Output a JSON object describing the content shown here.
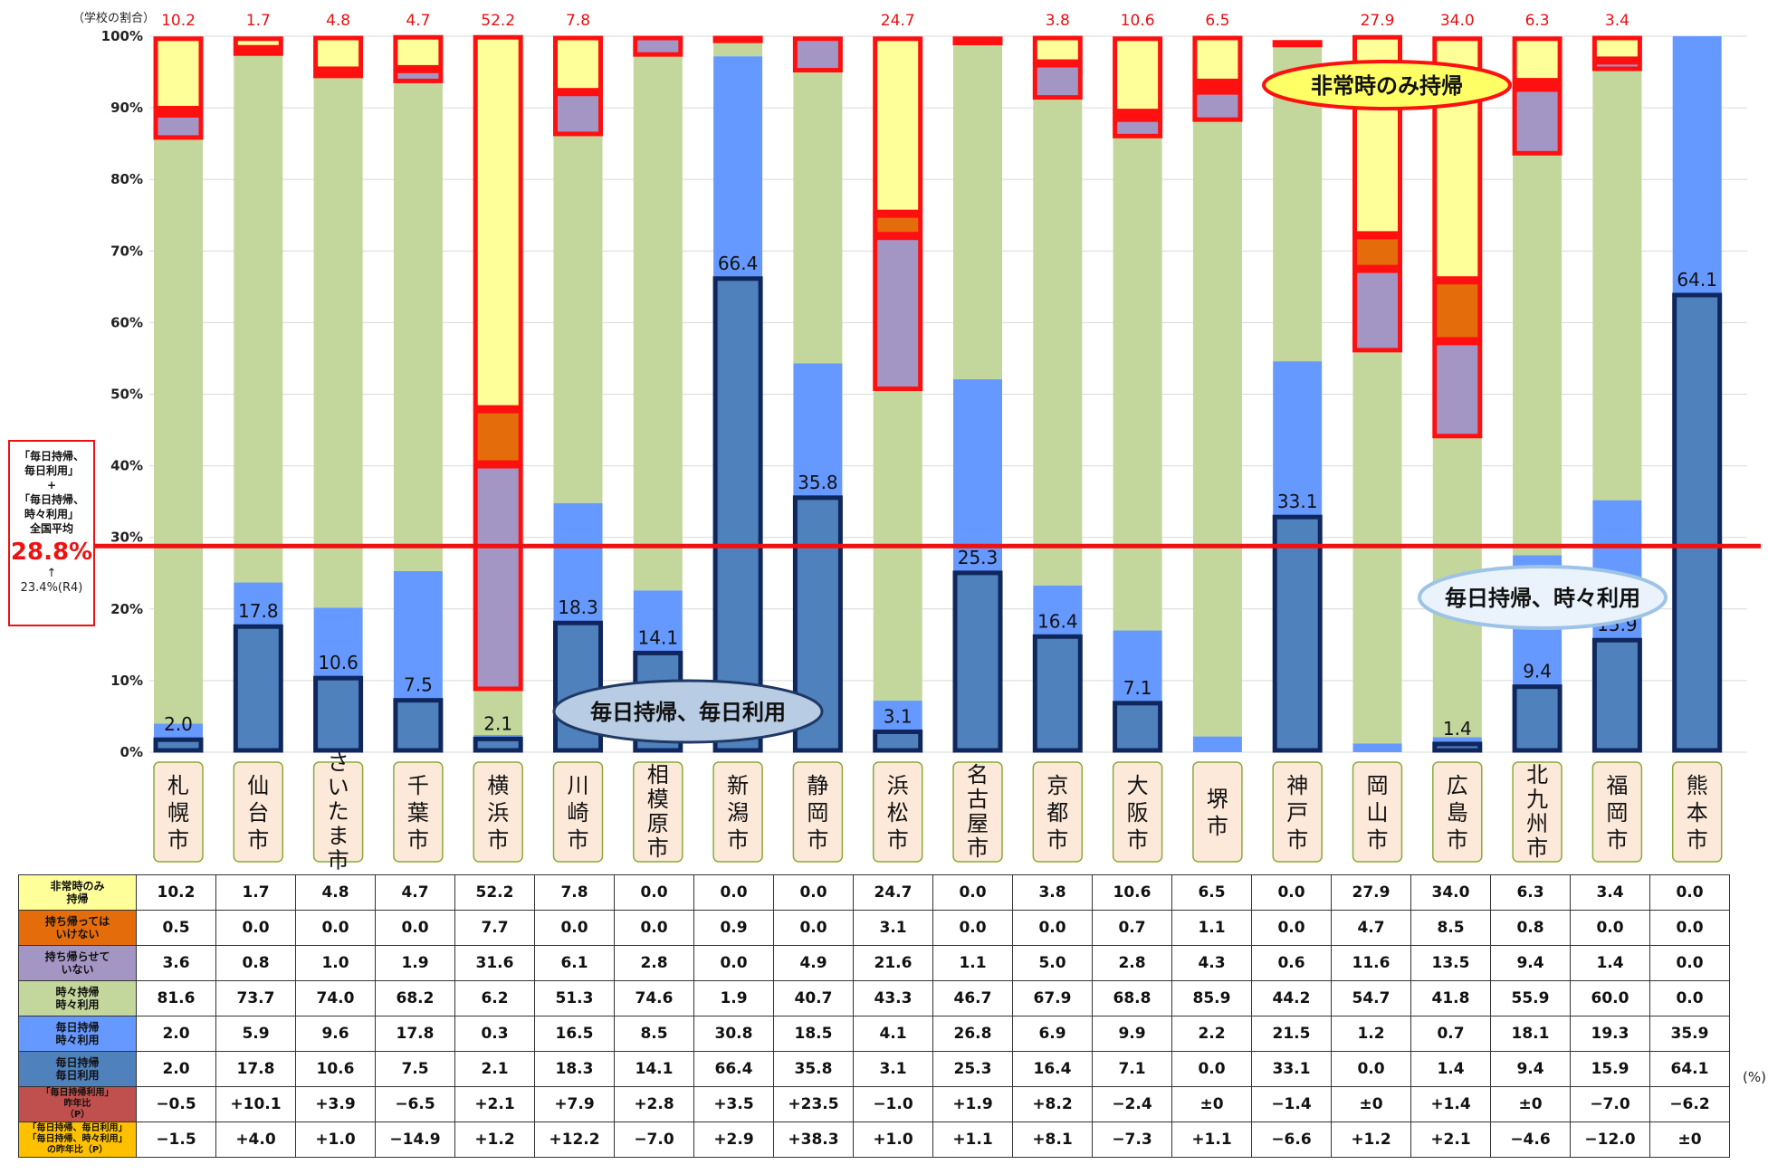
{
  "chart_data": {
    "type": "bar",
    "stacked": true,
    "y_unit_label": "（学校の割合）",
    "ylim": [
      0,
      100
    ],
    "yticks": [
      "0%",
      "10%",
      "20%",
      "30%",
      "40%",
      "50%",
      "60%",
      "70%",
      "80%",
      "90%",
      "100%"
    ],
    "unit_note": "(%)",
    "categories": [
      "札幌市",
      "仙台市",
      "さいたま市",
      "千葉市",
      "横浜市",
      "川崎市",
      "相模原市",
      "新潟市",
      "静岡市",
      "浜松市",
      "名古屋市",
      "京都市",
      "大阪市",
      "堺市",
      "神戸市",
      "岡山市",
      "広島市",
      "北九州市",
      "福岡市",
      "熊本市"
    ],
    "series": [
      {
        "name": "毎日持帰 毎日利用",
        "color": "#4f81bd",
        "values": [
          2.0,
          17.8,
          10.6,
          7.5,
          2.1,
          18.3,
          14.1,
          66.4,
          35.8,
          3.1,
          25.3,
          16.4,
          7.1,
          0.0,
          33.1,
          0.0,
          1.4,
          9.4,
          15.9,
          64.1
        ]
      },
      {
        "name": "毎日持帰 時々利用",
        "color": "#6699ff",
        "values": [
          2.0,
          5.9,
          9.6,
          17.8,
          0.3,
          16.5,
          8.5,
          30.8,
          18.5,
          4.1,
          26.8,
          6.9,
          9.9,
          2.2,
          21.5,
          1.2,
          0.7,
          18.1,
          19.3,
          35.9
        ]
      },
      {
        "name": "時々持帰 時々利用",
        "color": "#c3d69b",
        "values": [
          81.6,
          73.7,
          74.0,
          68.2,
          6.2,
          51.3,
          74.6,
          1.9,
          40.7,
          43.3,
          46.7,
          67.9,
          68.8,
          85.9,
          44.2,
          54.7,
          41.8,
          55.9,
          60.0,
          0.0
        ]
      },
      {
        "name": "持ち帰らせて いない",
        "color": "#a396c4",
        "values": [
          3.6,
          0.8,
          1.0,
          1.9,
          31.6,
          6.1,
          2.8,
          0.0,
          4.9,
          21.6,
          1.1,
          5.0,
          2.8,
          4.3,
          0.6,
          11.6,
          13.5,
          9.4,
          1.4,
          0.0
        ]
      },
      {
        "name": "持ち帰っては いけない",
        "color": "#e46c0a",
        "values": [
          0.5,
          0.0,
          0.0,
          0.0,
          7.7,
          0.0,
          0.0,
          0.9,
          0.0,
          3.1,
          0.0,
          0.0,
          0.7,
          1.1,
          0.0,
          4.7,
          8.5,
          0.8,
          0.0,
          0.0
        ]
      },
      {
        "name": "非常時のみ 持帰",
        "color": "#ffff99",
        "values": [
          10.2,
          1.7,
          4.8,
          4.7,
          52.2,
          7.8,
          0.0,
          0.0,
          0.0,
          24.7,
          0.0,
          3.8,
          10.6,
          6.5,
          0.0,
          27.9,
          34.0,
          6.3,
          3.4,
          0.0
        ]
      }
    ],
    "top_labels": [
      "10.2",
      "1.7",
      "4.8",
      "4.7",
      "52.2",
      "7.8",
      "",
      "",
      "",
      "24.7",
      "",
      "3.8",
      "10.6",
      "6.5",
      "",
      "27.9",
      "34.0",
      "6.3",
      "3.4",
      ""
    ],
    "bottom_labels": [
      "2.0",
      "17.8",
      "10.6",
      "7.5",
      "2.1",
      "18.3",
      "14.1",
      "66.4",
      "35.8",
      "3.1",
      "25.3",
      "16.4",
      "7.1",
      "",
      "33.1",
      "",
      "1.4",
      "9.4",
      "15.9",
      "64.1"
    ],
    "national_average": 28.8,
    "average_line_color": "#ee1111",
    "callouts": [
      "毎日持帰、毎日利用",
      "毎日持帰、時々利用",
      "非常時のみ持帰"
    ]
  },
  "avg_box": {
    "line1": "「毎日持帰、",
    "line2": "毎日利用」",
    "line3": "+",
    "line4": "「毎日持帰、",
    "line5": "時々利用」",
    "line6": "全国平均",
    "value": "28.8%",
    "arrow": "↑",
    "prev": "23.4%(R4)"
  },
  "table": {
    "rows": [
      {
        "header": [
          "非常時のみ",
          "持帰"
        ],
        "bg": "#ffff99",
        "values": [
          "10.2",
          "1.7",
          "4.8",
          "4.7",
          "52.2",
          "7.8",
          "0.0",
          "0.0",
          "0.0",
          "24.7",
          "0.0",
          "3.8",
          "10.6",
          "6.5",
          "0.0",
          "27.9",
          "34.0",
          "6.3",
          "3.4",
          "0.0"
        ]
      },
      {
        "header": [
          "持ち帰っては",
          "いけない"
        ],
        "bg": "#e46c0a",
        "values": [
          "0.5",
          "0.0",
          "0.0",
          "0.0",
          "7.7",
          "0.0",
          "0.0",
          "0.9",
          "0.0",
          "3.1",
          "0.0",
          "0.0",
          "0.7",
          "1.1",
          "0.0",
          "4.7",
          "8.5",
          "0.8",
          "0.0",
          "0.0"
        ]
      },
      {
        "header": [
          "持ち帰らせて",
          "いない"
        ],
        "bg": "#a396c4",
        "values": [
          "3.6",
          "0.8",
          "1.0",
          "1.9",
          "31.6",
          "6.1",
          "2.8",
          "0.0",
          "4.9",
          "21.6",
          "1.1",
          "5.0",
          "2.8",
          "4.3",
          "0.6",
          "11.6",
          "13.5",
          "9.4",
          "1.4",
          "0.0"
        ]
      },
      {
        "header": [
          "時々持帰",
          "時々利用"
        ],
        "bg": "#c3d69b",
        "values": [
          "81.6",
          "73.7",
          "74.0",
          "68.2",
          "6.2",
          "51.3",
          "74.6",
          "1.9",
          "40.7",
          "43.3",
          "46.7",
          "67.9",
          "68.8",
          "85.9",
          "44.2",
          "54.7",
          "41.8",
          "55.9",
          "60.0",
          "0.0"
        ]
      },
      {
        "header": [
          "毎日持帰",
          "時々利用"
        ],
        "bg": "#6699ff",
        "values": [
          "2.0",
          "5.9",
          "9.6",
          "17.8",
          "0.3",
          "16.5",
          "8.5",
          "30.8",
          "18.5",
          "4.1",
          "26.8",
          "6.9",
          "9.9",
          "2.2",
          "21.5",
          "1.2",
          "0.7",
          "18.1",
          "19.3",
          "35.9"
        ]
      },
      {
        "header": [
          "毎日持帰",
          "毎日利用"
        ],
        "bg": "#4f81bd",
        "values": [
          "2.0",
          "17.8",
          "10.6",
          "7.5",
          "2.1",
          "18.3",
          "14.1",
          "66.4",
          "35.8",
          "3.1",
          "25.3",
          "16.4",
          "7.1",
          "0.0",
          "33.1",
          "0.0",
          "1.4",
          "9.4",
          "15.9",
          "64.1"
        ]
      },
      {
        "header": [
          "「毎日持帰利用」",
          "昨年比",
          "（P）"
        ],
        "bg": "#c0504d",
        "values": [
          "−0.5",
          "+10.1",
          "+3.9",
          "−6.5",
          "+2.1",
          "+7.9",
          "+2.8",
          "+3.5",
          "+23.5",
          "−1.0",
          "+1.9",
          "+8.2",
          "−2.4",
          "±0",
          "−1.4",
          "±0",
          "+1.4",
          "±0",
          "−7.0",
          "−6.2"
        ]
      },
      {
        "header": [
          "「毎日持帰、毎日利用」",
          "「毎日持帰、時々利用」",
          "の昨年比（P）"
        ],
        "bg": "#ffc000",
        "values": [
          "−1.5",
          "+4.0",
          "+1.0",
          "−14.9",
          "+1.2",
          "+12.2",
          "−7.0",
          "+2.9",
          "+38.3",
          "+1.0",
          "+1.1",
          "+8.1",
          "−7.3",
          "+1.1",
          "−6.6",
          "+1.2",
          "+2.1",
          "−4.6",
          "−12.0",
          "±0"
        ]
      }
    ]
  }
}
